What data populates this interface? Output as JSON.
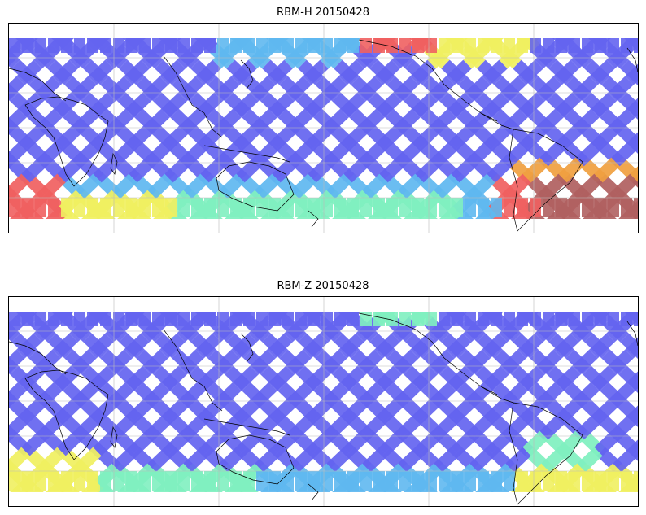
{
  "figure": {
    "panels": [
      {
        "title": "RBM-H 20150428",
        "variable": "RBM-H",
        "date": "20150428"
      },
      {
        "title": "RBM-Z 20150428",
        "variable": "RBM-Z",
        "date": "20150428"
      }
    ]
  },
  "map": {
    "projection": "equirectangular",
    "central_longitude": 180,
    "lon_range": [
      30,
      390
    ],
    "lat_range": [
      -65,
      55
    ],
    "grid": true,
    "grid_spacing_lon": 60,
    "grid_spacing_lat": 20,
    "coastlines": true,
    "colormap": "jet",
    "swath_pattern": "crossing diagonal satellite swaths"
  },
  "colors": {
    "low": "#6464f0",
    "low_mid": "#5fb8f0",
    "mid": "#80f0c0",
    "mid_high": "#f0f060",
    "high": "#f0a040",
    "very_high": "#f06060",
    "max": "#b06060",
    "coastline": "#000000",
    "gridline": "#bbbbbb"
  },
  "highlights": {
    "RBM-H": [
      {
        "region": "southern ocean west",
        "level": "high"
      },
      {
        "region": "north pacific arc",
        "level": "high"
      },
      {
        "region": "south atlantic",
        "level": "max"
      }
    ],
    "RBM-Z": [
      {
        "region": "south atlantic",
        "level": "mid_high"
      },
      {
        "region": "southern ocean west",
        "level": "mid"
      }
    ]
  }
}
